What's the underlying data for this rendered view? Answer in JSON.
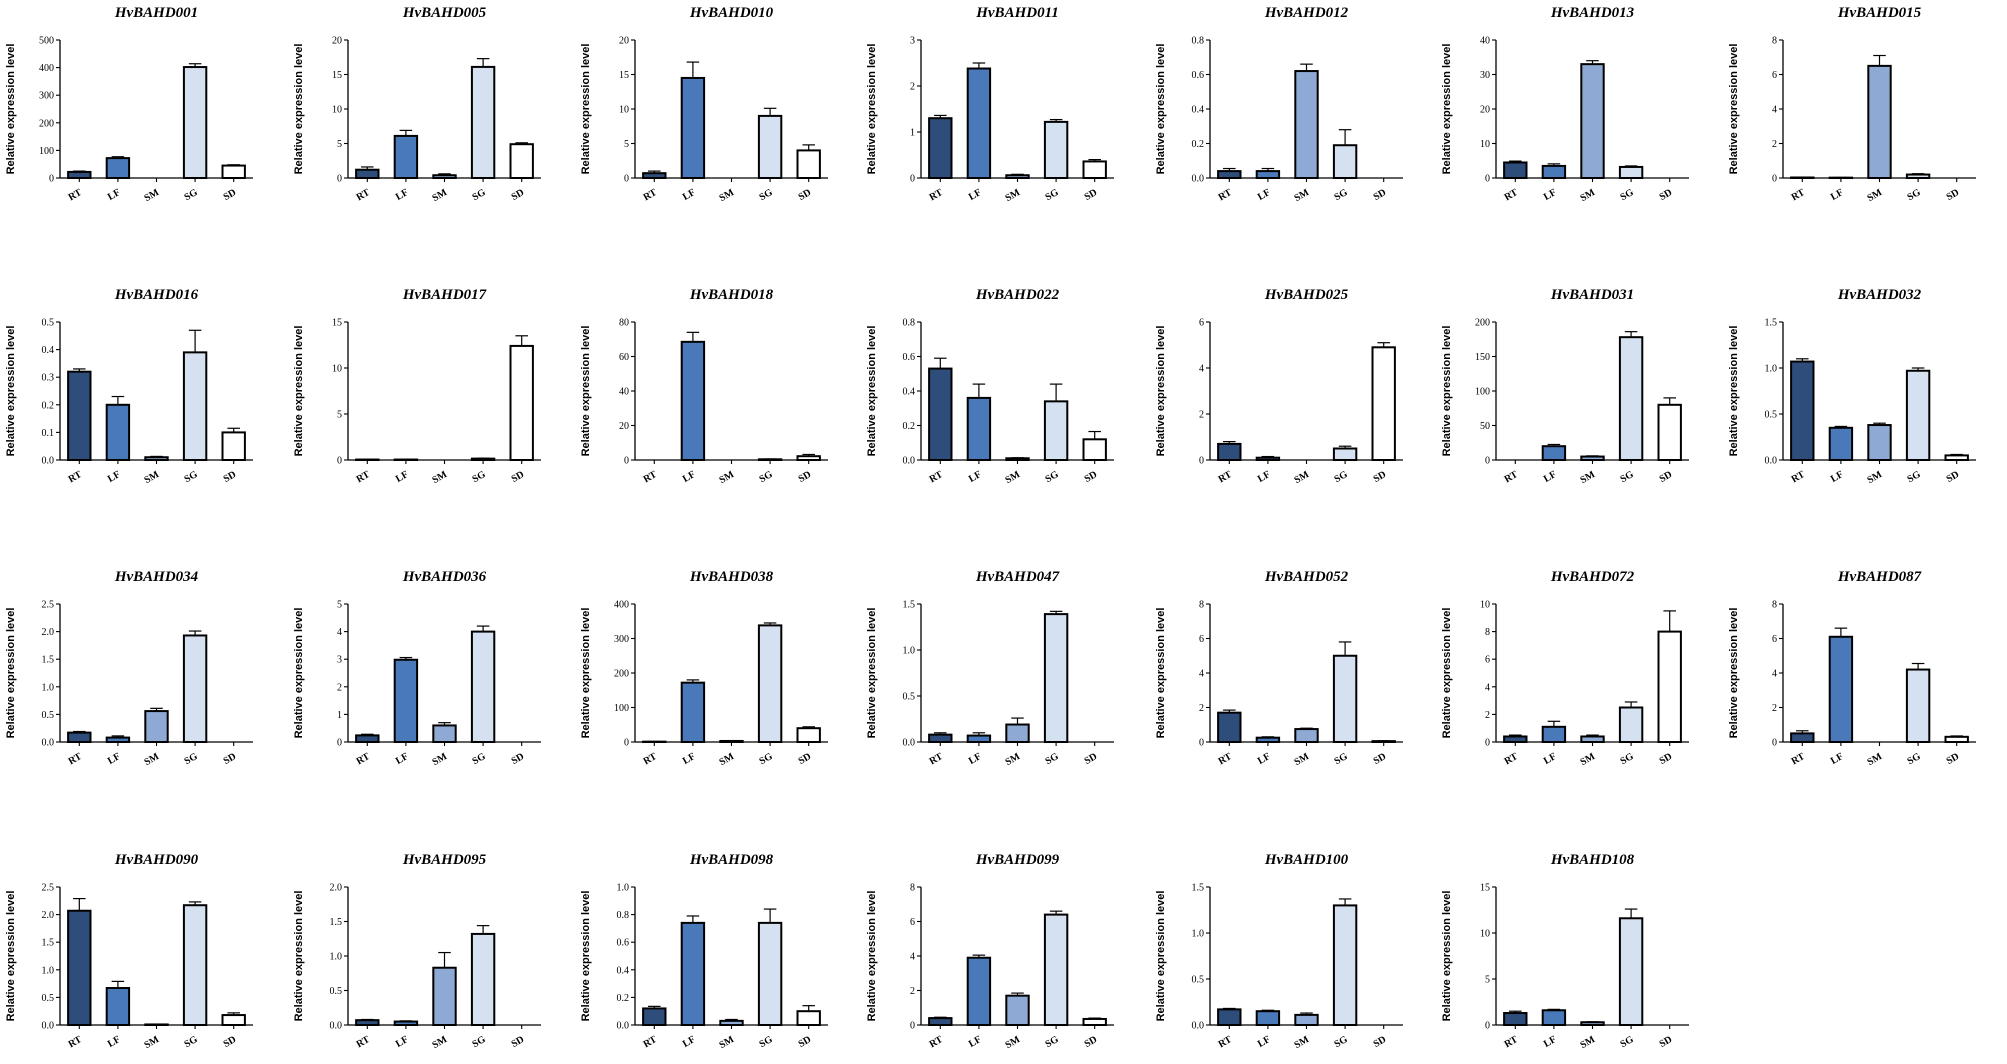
{
  "figure": {
    "colors": {
      "RT": "#2e4d7b",
      "LF": "#4a79b9",
      "SM": "#8ea9d3",
      "SG": "#d5e0f0",
      "SD": "#ffffff"
    },
    "edge_color": "#000000"
  },
  "chart_data": [
    {
      "type": "bar",
      "title": "HvBAHD001",
      "ylabel": "Relative expression level",
      "categories": [
        "RT",
        "LF",
        "SM",
        "SG",
        "SD"
      ],
      "values": [
        22,
        72,
        0,
        402,
        45
      ],
      "errors": [
        3,
        5,
        0,
        12,
        3
      ],
      "ylim": [
        0,
        500
      ],
      "yticks": [
        0,
        100,
        200,
        300,
        400,
        500
      ],
      "ytick_labels": [
        "0",
        "100",
        "200",
        "300",
        "400",
        "500"
      ]
    },
    {
      "type": "bar",
      "title": "HvBAHD005",
      "ylabel": "Relative expression level",
      "categories": [
        "RT",
        "LF",
        "SM",
        "SG",
        "SD"
      ],
      "values": [
        1.2,
        6.1,
        0.4,
        16.1,
        4.9
      ],
      "errors": [
        0.4,
        0.8,
        0.2,
        1.2,
        0.2
      ],
      "ylim": [
        0,
        20
      ],
      "yticks": [
        0,
        5,
        10,
        15,
        20
      ],
      "ytick_labels": [
        "0",
        "5",
        "10",
        "15",
        "20"
      ]
    },
    {
      "type": "bar",
      "title": "HvBAHD010",
      "ylabel": "Relative expression level",
      "categories": [
        "RT",
        "LF",
        "SM",
        "SG",
        "SD"
      ],
      "values": [
        0.7,
        14.5,
        0,
        9,
        4
      ],
      "errors": [
        0.3,
        2.3,
        0,
        1.1,
        0.8
      ],
      "ylim": [
        0,
        20
      ],
      "yticks": [
        0,
        5,
        10,
        15,
        20
      ],
      "ytick_labels": [
        "0",
        "5",
        "10",
        "15",
        "20"
      ]
    },
    {
      "type": "bar",
      "title": "HvBAHD011",
      "ylabel": "Relative expression level",
      "categories": [
        "RT",
        "LF",
        "SM",
        "SG",
        "SD"
      ],
      "values": [
        1.3,
        2.38,
        0.06,
        1.22,
        0.36
      ],
      "errors": [
        0.06,
        0.12,
        0.02,
        0.05,
        0.04
      ],
      "ylim": [
        0,
        3
      ],
      "yticks": [
        0,
        1,
        2,
        3
      ],
      "ytick_labels": [
        "0",
        "1",
        "2",
        "3"
      ]
    },
    {
      "type": "bar",
      "title": "HvBAHD012",
      "ylabel": "Relative expression level",
      "categories": [
        "RT",
        "LF",
        "SM",
        "SG",
        "SD"
      ],
      "values": [
        0.04,
        0.04,
        0.62,
        0.19,
        0
      ],
      "errors": [
        0.015,
        0.015,
        0.04,
        0.09,
        0
      ],
      "ylim": [
        0,
        0.8
      ],
      "yticks": [
        0,
        0.2,
        0.4,
        0.6,
        0.8
      ],
      "ytick_labels": [
        "0.0",
        "0.2",
        "0.4",
        "0.6",
        "0.8"
      ]
    },
    {
      "type": "bar",
      "title": "HvBAHD013",
      "ylabel": "Relative expression level",
      "categories": [
        "RT",
        "LF",
        "SM",
        "SG",
        "SD"
      ],
      "values": [
        4.5,
        3.5,
        33,
        3.2,
        0
      ],
      "errors": [
        0.4,
        0.6,
        1,
        0.3,
        0
      ],
      "ylim": [
        0,
        40
      ],
      "yticks": [
        0,
        10,
        20,
        30,
        40
      ],
      "ytick_labels": [
        "0",
        "10",
        "20",
        "30",
        "40"
      ]
    },
    {
      "type": "bar",
      "title": "HvBAHD015",
      "ylabel": "Relative expression level",
      "categories": [
        "RT",
        "LF",
        "SM",
        "SG",
        "SD"
      ],
      "values": [
        0.03,
        0.02,
        6.5,
        0.2,
        0
      ],
      "errors": [
        0.01,
        0.01,
        0.6,
        0.05,
        0
      ],
      "ylim": [
        0,
        8
      ],
      "yticks": [
        0,
        2,
        4,
        6,
        8
      ],
      "ytick_labels": [
        "0",
        "2",
        "4",
        "6",
        "8"
      ]
    },
    {
      "type": "bar",
      "title": "HvBAHD016",
      "ylabel": "Relative expression level",
      "categories": [
        "RT",
        "LF",
        "SM",
        "SG",
        "SD"
      ],
      "values": [
        0.32,
        0.2,
        0.01,
        0.39,
        0.1
      ],
      "errors": [
        0.01,
        0.03,
        0.003,
        0.08,
        0.015
      ],
      "ylim": [
        0,
        0.5
      ],
      "yticks": [
        0,
        0.1,
        0.2,
        0.3,
        0.4,
        0.5
      ],
      "ytick_labels": [
        "0.0",
        "0.1",
        "0.2",
        "0.3",
        "0.4",
        "0.5"
      ]
    },
    {
      "type": "bar",
      "title": "HvBAHD017",
      "ylabel": "Relative expression level",
      "categories": [
        "RT",
        "LF",
        "SM",
        "SG",
        "SD"
      ],
      "values": [
        0.05,
        0.05,
        0,
        0.15,
        12.4
      ],
      "errors": [
        0.02,
        0.02,
        0,
        0.05,
        1.1
      ],
      "ylim": [
        0,
        15
      ],
      "yticks": [
        0,
        5,
        10,
        15
      ],
      "ytick_labels": [
        "0",
        "5",
        "10",
        "15"
      ]
    },
    {
      "type": "bar",
      "title": "HvBAHD018",
      "ylabel": "Relative expression level",
      "categories": [
        "RT",
        "LF",
        "SM",
        "SG",
        "SD"
      ],
      "values": [
        0,
        68.5,
        0,
        0.4,
        2.2
      ],
      "errors": [
        0,
        5.5,
        0,
        0.2,
        1
      ],
      "ylim": [
        0,
        80
      ],
      "yticks": [
        0,
        20,
        40,
        60,
        80
      ],
      "ytick_labels": [
        "0",
        "20",
        "40",
        "60",
        "80"
      ]
    },
    {
      "type": "bar",
      "title": "HvBAHD022",
      "ylabel": "Relative expression level",
      "categories": [
        "RT",
        "LF",
        "SM",
        "SG",
        "SD"
      ],
      "values": [
        0.53,
        0.36,
        0.01,
        0.34,
        0.12
      ],
      "errors": [
        0.06,
        0.08,
        0.003,
        0.1,
        0.045
      ],
      "ylim": [
        0,
        0.8
      ],
      "yticks": [
        0,
        0.2,
        0.4,
        0.6,
        0.8
      ],
      "ytick_labels": [
        "0.0",
        "0.2",
        "0.4",
        "0.6",
        "0.8"
      ]
    },
    {
      "type": "bar",
      "title": "HvBAHD025",
      "ylabel": "Relative expression level",
      "categories": [
        "RT",
        "LF",
        "SM",
        "SG",
        "SD"
      ],
      "values": [
        0.7,
        0.1,
        0,
        0.5,
        4.9
      ],
      "errors": [
        0.1,
        0.05,
        0,
        0.1,
        0.2
      ],
      "ylim": [
        0,
        6
      ],
      "yticks": [
        0,
        2,
        4,
        6
      ],
      "ytick_labels": [
        "0",
        "2",
        "4",
        "6"
      ]
    },
    {
      "type": "bar",
      "title": "HvBAHD031",
      "ylabel": "Relative expression level",
      "categories": [
        "RT",
        "LF",
        "SM",
        "SG",
        "SD"
      ],
      "values": [
        0,
        20,
        5,
        178,
        80
      ],
      "errors": [
        0,
        2.5,
        1,
        8,
        10
      ],
      "ylim": [
        0,
        200
      ],
      "yticks": [
        0,
        50,
        100,
        150,
        200
      ],
      "ytick_labels": [
        "0",
        "50",
        "100",
        "150",
        "200"
      ]
    },
    {
      "type": "bar",
      "title": "HvBAHD032",
      "ylabel": "Relative expression level",
      "categories": [
        "RT",
        "LF",
        "SM",
        "SG",
        "SD"
      ],
      "values": [
        1.07,
        0.35,
        0.38,
        0.97,
        0.05
      ],
      "errors": [
        0.03,
        0.015,
        0.02,
        0.03,
        0.01
      ],
      "ylim": [
        0,
        1.5
      ],
      "yticks": [
        0,
        0.5,
        1,
        1.5
      ],
      "ytick_labels": [
        "0.0",
        "0.5",
        "1.0",
        "1.5"
      ]
    },
    {
      "type": "bar",
      "title": "HvBAHD034",
      "ylabel": "Relative expression level",
      "categories": [
        "RT",
        "LF",
        "SM",
        "SG",
        "SD"
      ],
      "values": [
        0.17,
        0.08,
        0.56,
        1.93,
        0
      ],
      "errors": [
        0.02,
        0.03,
        0.05,
        0.08,
        0
      ],
      "ylim": [
        0,
        2.5
      ],
      "yticks": [
        0,
        0.5,
        1,
        1.5,
        2,
        2.5
      ],
      "ytick_labels": [
        "0.0",
        "0.5",
        "1.0",
        "1.5",
        "2.0",
        "2.5"
      ]
    },
    {
      "type": "bar",
      "title": "HvBAHD036",
      "ylabel": "Relative expression level",
      "categories": [
        "RT",
        "LF",
        "SM",
        "SG",
        "SD"
      ],
      "values": [
        0.24,
        2.98,
        0.6,
        4,
        0
      ],
      "errors": [
        0.04,
        0.08,
        0.1,
        0.2,
        0
      ],
      "ylim": [
        0,
        5
      ],
      "yticks": [
        0,
        1,
        2,
        3,
        4,
        5
      ],
      "ytick_labels": [
        "0",
        "1",
        "2",
        "3",
        "4",
        "5"
      ]
    },
    {
      "type": "bar",
      "title": "HvBAHD038",
      "ylabel": "Relative expression level",
      "categories": [
        "RT",
        "LF",
        "SM",
        "SG",
        "SD"
      ],
      "values": [
        1,
        172,
        3,
        338,
        40
      ],
      "errors": [
        0.5,
        8,
        1,
        7,
        4
      ],
      "ylim": [
        0,
        400
      ],
      "yticks": [
        0,
        100,
        200,
        300,
        400
      ],
      "ytick_labels": [
        "0",
        "100",
        "200",
        "300",
        "400"
      ]
    },
    {
      "type": "bar",
      "title": "HvBAHD047",
      "ylabel": "Relative expression level",
      "categories": [
        "RT",
        "LF",
        "SM",
        "SG",
        "SD"
      ],
      "values": [
        0.08,
        0.07,
        0.19,
        1.39,
        0
      ],
      "errors": [
        0.02,
        0.03,
        0.07,
        0.03,
        0
      ],
      "ylim": [
        0,
        1.5
      ],
      "yticks": [
        0,
        0.5,
        1,
        1.5
      ],
      "ytick_labels": [
        "0.0",
        "0.5",
        "1.0",
        "1.5"
      ]
    },
    {
      "type": "bar",
      "title": "HvBAHD052",
      "ylabel": "Relative expression level",
      "categories": [
        "RT",
        "LF",
        "SM",
        "SG",
        "SD"
      ],
      "values": [
        1.7,
        0.25,
        0.75,
        5,
        0.05
      ],
      "errors": [
        0.15,
        0.05,
        0.05,
        0.8,
        0.02
      ],
      "ylim": [
        0,
        8
      ],
      "yticks": [
        0,
        2,
        4,
        6,
        8
      ],
      "ytick_labels": [
        "0",
        "2",
        "4",
        "6",
        "8"
      ]
    },
    {
      "type": "bar",
      "title": "HvBAHD072",
      "ylabel": "Relative expression level",
      "categories": [
        "RT",
        "LF",
        "SM",
        "SG",
        "SD"
      ],
      "values": [
        0.4,
        1.1,
        0.4,
        2.5,
        8
      ],
      "errors": [
        0.1,
        0.4,
        0.1,
        0.4,
        1.5
      ],
      "ylim": [
        0,
        10
      ],
      "yticks": [
        0,
        2,
        4,
        6,
        8,
        10
      ],
      "ytick_labels": [
        "0",
        "2",
        "4",
        "6",
        "8",
        "10"
      ]
    },
    {
      "type": "bar",
      "title": "HvBAHD087",
      "ylabel": "Relative expression level",
      "categories": [
        "RT",
        "LF",
        "SM",
        "SG",
        "SD"
      ],
      "values": [
        0.5,
        6.1,
        0,
        4.2,
        0.3
      ],
      "errors": [
        0.15,
        0.5,
        0,
        0.35,
        0.05
      ],
      "ylim": [
        0,
        8
      ],
      "yticks": [
        0,
        2,
        4,
        6,
        8
      ],
      "ytick_labels": [
        "0",
        "2",
        "4",
        "6",
        "8"
      ]
    },
    {
      "type": "bar",
      "title": "HvBAHD090",
      "ylabel": "Relative expression level",
      "categories": [
        "RT",
        "LF",
        "SM",
        "SG",
        "SD"
      ],
      "values": [
        2.07,
        0.67,
        0.01,
        2.17,
        0.18
      ],
      "errors": [
        0.22,
        0.12,
        0.003,
        0.06,
        0.04
      ],
      "ylim": [
        0,
        2.5
      ],
      "yticks": [
        0,
        0.5,
        1,
        1.5,
        2,
        2.5
      ],
      "ytick_labels": [
        "0.0",
        "0.5",
        "1.0",
        "1.5",
        "2.0",
        "2.5"
      ]
    },
    {
      "type": "bar",
      "title": "HvBAHD095",
      "ylabel": "Relative expression level",
      "categories": [
        "RT",
        "LF",
        "SM",
        "SG",
        "SD"
      ],
      "values": [
        0.07,
        0.05,
        0.83,
        1.32,
        0
      ],
      "errors": [
        0.01,
        0.01,
        0.22,
        0.12,
        0
      ],
      "ylim": [
        0,
        2
      ],
      "yticks": [
        0,
        0.5,
        1,
        1.5,
        2
      ],
      "ytick_labels": [
        "0.0",
        "0.5",
        "1.0",
        "1.5",
        "2.0"
      ]
    },
    {
      "type": "bar",
      "title": "HvBAHD098",
      "ylabel": "Relative expression level",
      "categories": [
        "RT",
        "LF",
        "SM",
        "SG",
        "SD"
      ],
      "values": [
        0.12,
        0.74,
        0.03,
        0.74,
        0.1
      ],
      "errors": [
        0.015,
        0.05,
        0.01,
        0.1,
        0.04
      ],
      "ylim": [
        0,
        1
      ],
      "yticks": [
        0,
        0.2,
        0.4,
        0.6,
        0.8,
        1
      ],
      "ytick_labels": [
        "0.0",
        "0.2",
        "0.4",
        "0.6",
        "0.8",
        "1.0"
      ]
    },
    {
      "type": "bar",
      "title": "HvBAHD099",
      "ylabel": "Relative expression level",
      "categories": [
        "RT",
        "LF",
        "SM",
        "SG",
        "SD"
      ],
      "values": [
        0.4,
        3.9,
        1.7,
        6.4,
        0.35
      ],
      "errors": [
        0.05,
        0.15,
        0.15,
        0.2,
        0.05
      ],
      "ylim": [
        0,
        8
      ],
      "yticks": [
        0,
        2,
        4,
        6,
        8
      ],
      "ytick_labels": [
        "0",
        "2",
        "4",
        "6",
        "8"
      ]
    },
    {
      "type": "bar",
      "title": "HvBAHD100",
      "ylabel": "Relative expression level",
      "categories": [
        "RT",
        "LF",
        "SM",
        "SG",
        "SD"
      ],
      "values": [
        0.17,
        0.15,
        0.11,
        1.3,
        0
      ],
      "errors": [
        0.01,
        0.01,
        0.02,
        0.07,
        0
      ],
      "ylim": [
        0,
        1.5
      ],
      "yticks": [
        0,
        0.5,
        1,
        1.5
      ],
      "ytick_labels": [
        "0.0",
        "0.5",
        "1.0",
        "1.5"
      ]
    },
    {
      "type": "bar",
      "title": "HvBAHD108",
      "ylabel": "Relative expression level",
      "categories": [
        "RT",
        "LF",
        "SM",
        "SG",
        "SD"
      ],
      "values": [
        1.3,
        1.6,
        0.3,
        11.6,
        0
      ],
      "errors": [
        0.2,
        0.1,
        0.05,
        1,
        0
      ],
      "ylim": [
        0,
        15
      ],
      "yticks": [
        0,
        5,
        10,
        15
      ],
      "ytick_labels": [
        "0",
        "5",
        "10",
        "15"
      ]
    }
  ]
}
